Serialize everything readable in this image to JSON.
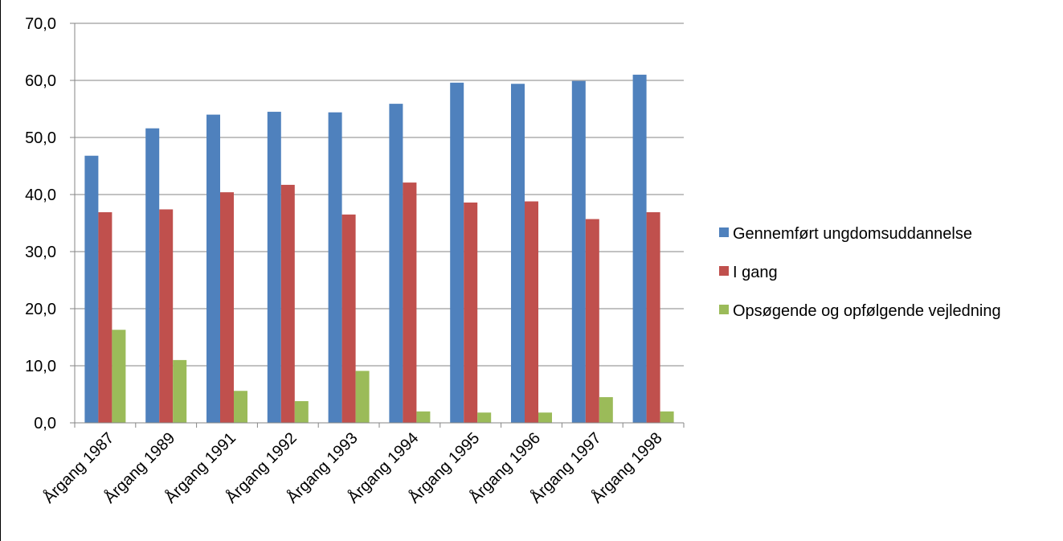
{
  "chart_data": {
    "type": "bar",
    "categories": [
      "Årgang 1987",
      "Årgang 1989",
      "Årgang 1991",
      "Årgang 1992",
      "Årgang 1993",
      "Årgang 1994",
      "Årgang 1995",
      "Årgang 1996",
      "Årgang 1997",
      "Årgang 1998"
    ],
    "series": [
      {
        "name": "Gennemført ungdomsuddannelse",
        "color": "#4F81BD",
        "values": [
          46.8,
          51.6,
          54.0,
          54.5,
          54.4,
          55.9,
          59.6,
          59.4,
          59.9,
          61.0
        ]
      },
      {
        "name": "I gang",
        "color": "#C0504D",
        "values": [
          36.9,
          37.4,
          40.4,
          41.7,
          36.5,
          42.1,
          38.6,
          38.8,
          35.7,
          36.9
        ]
      },
      {
        "name": "Opsøgende og opfølgende vejledning",
        "color": "#9BBB59",
        "values": [
          16.3,
          11.0,
          5.6,
          3.8,
          9.1,
          2.0,
          1.8,
          1.8,
          4.5,
          2.0
        ]
      }
    ],
    "y_ticks": [
      "0,0",
      "10,0",
      "20,0",
      "30,0",
      "40,0",
      "50,0",
      "60,0",
      "70,0"
    ],
    "ylim": [
      0,
      70
    ],
    "title": "",
    "xlabel": "",
    "ylabel": "",
    "grid": true,
    "legend": "right"
  }
}
